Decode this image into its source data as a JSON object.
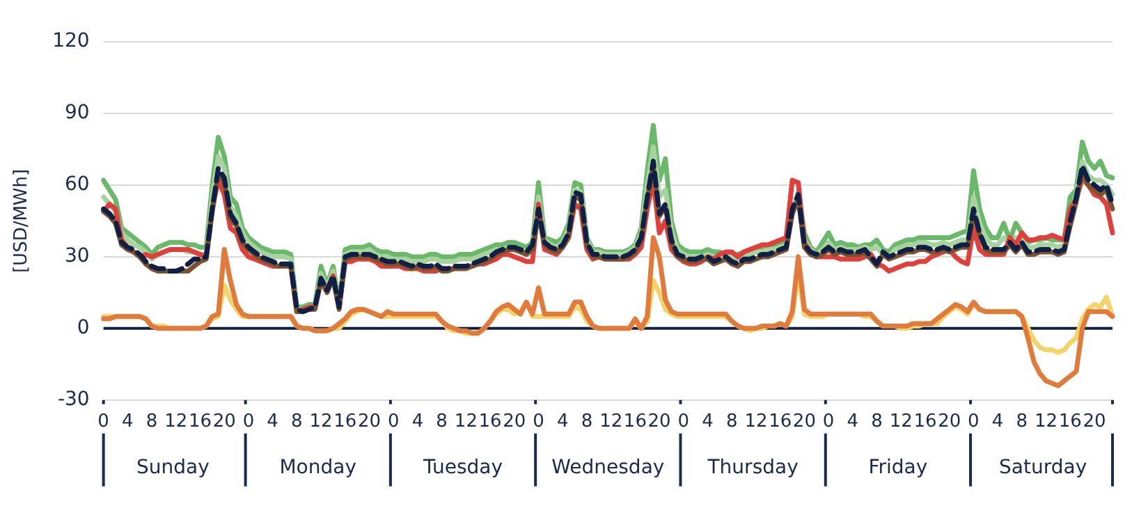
{
  "chart_data": {
    "type": "line",
    "ylabel": "[USD/MWh]",
    "ylim": [
      -30,
      120
    ],
    "yticks": [
      -30,
      0,
      30,
      60,
      90,
      120
    ],
    "grid": "y",
    "legend": false,
    "marker": "none",
    "categories": [
      "0",
      null,
      null,
      null,
      "4",
      null,
      null,
      null,
      "8",
      null,
      null,
      null,
      "12",
      null,
      null,
      null,
      "16",
      null,
      null,
      null,
      "20",
      null,
      null,
      null,
      "0",
      null,
      null,
      null,
      "4",
      null,
      null,
      null,
      "8",
      null,
      null,
      null,
      "12",
      null,
      null,
      null,
      "16",
      null,
      null,
      null,
      "20",
      null,
      null,
      null,
      "0",
      null,
      null,
      null,
      "4",
      null,
      null,
      null,
      "8",
      null,
      null,
      null,
      "12",
      null,
      null,
      null,
      "16",
      null,
      null,
      null,
      "20",
      null,
      null,
      null,
      "0",
      null,
      null,
      null,
      "4",
      null,
      null,
      null,
      "8",
      null,
      null,
      null,
      "12",
      null,
      null,
      null,
      "16",
      null,
      null,
      null,
      "20",
      null,
      null,
      null,
      "0",
      null,
      null,
      null,
      "4",
      null,
      null,
      null,
      "8",
      null,
      null,
      null,
      "12",
      null,
      null,
      null,
      "16",
      null,
      null,
      null,
      "20",
      null,
      null,
      null,
      "0",
      null,
      null,
      null,
      "4",
      null,
      null,
      null,
      "8",
      null,
      null,
      null,
      "12",
      null,
      null,
      null,
      "16",
      null,
      null,
      null,
      "20",
      null,
      null,
      null,
      "0",
      null,
      null,
      null,
      "4",
      null,
      null,
      null,
      "8",
      null,
      null,
      null,
      "12",
      null,
      null,
      null,
      "16",
      null,
      null,
      null,
      "20",
      null,
      null,
      null
    ],
    "annotations": [
      "Sunday",
      "Monday",
      "Tuesday",
      "Wednesday",
      "Thursday",
      "Friday",
      "Saturday"
    ],
    "ref_lines": [
      {
        "axis": "y",
        "value": 0,
        "color": "#0f1f45"
      }
    ],
    "series": [
      {
        "color": "#6ab86a",
        "line_style": "solid",
        "values": [
          62,
          58,
          54,
          42,
          40,
          38,
          36,
          34,
          31,
          34,
          35,
          36,
          36,
          36,
          35,
          35,
          34,
          34,
          60,
          80,
          72,
          55,
          52,
          42,
          38,
          36,
          34,
          33,
          32,
          32,
          32,
          31,
          9,
          9,
          10,
          10,
          26,
          18,
          26,
          10,
          33,
          34,
          34,
          34,
          35,
          33,
          32,
          32,
          31,
          31,
          31,
          30,
          30,
          30,
          31,
          31,
          30,
          30,
          30,
          31,
          31,
          31,
          32,
          33,
          34,
          35,
          35,
          36,
          36,
          35,
          34,
          36,
          61,
          38,
          37,
          36,
          38,
          44,
          61,
          60,
          38,
          33,
          33,
          32,
          32,
          32,
          32,
          33,
          35,
          42,
          66,
          85,
          62,
          71,
          45,
          35,
          33,
          32,
          32,
          32,
          33,
          32,
          32,
          31,
          31,
          31,
          32,
          33,
          34,
          34,
          35,
          35,
          35,
          36,
          48,
          57,
          40,
          34,
          32,
          36,
          40,
          35,
          36,
          35,
          35,
          34,
          35,
          35,
          37,
          33,
          32,
          35,
          36,
          37,
          37,
          38,
          38,
          38,
          38,
          38,
          38,
          39,
          40,
          41,
          66,
          50,
          42,
          38,
          38,
          44,
          37,
          44,
          40,
          36,
          37,
          37,
          38,
          37,
          37,
          37,
          55,
          58,
          78,
          70,
          67,
          70,
          64,
          63
        ]
      },
      {
        "color": "#a9d39e",
        "line_style": "solid",
        "values": [
          55,
          52,
          49,
          40,
          37,
          35,
          34,
          32,
          29,
          31,
          32,
          33,
          33,
          33,
          32,
          32,
          31,
          31,
          55,
          72,
          67,
          51,
          47,
          40,
          36,
          34,
          32,
          31,
          30,
          30,
          30,
          29,
          8,
          8,
          9,
          9,
          23,
          17,
          24,
          9,
          31,
          32,
          32,
          32,
          33,
          31,
          30,
          30,
          29,
          29,
          29,
          28,
          28,
          28,
          29,
          29,
          28,
          28,
          28,
          29,
          29,
          29,
          30,
          31,
          32,
          33,
          33,
          34,
          34,
          33,
          32,
          34,
          55,
          37,
          35,
          34,
          36,
          42,
          58,
          57,
          37,
          32,
          32,
          31,
          31,
          31,
          31,
          32,
          34,
          40,
          60,
          76,
          55,
          58,
          41,
          33,
          31,
          30,
          30,
          30,
          31,
          30,
          30,
          30,
          30,
          29,
          30,
          31,
          32,
          32,
          33,
          33,
          34,
          35,
          48,
          55,
          37,
          33,
          31,
          33,
          36,
          33,
          34,
          33,
          33,
          33,
          34,
          33,
          34,
          31,
          30,
          33,
          34,
          35,
          35,
          36,
          36,
          35,
          35,
          36,
          35,
          36,
          37,
          37,
          55,
          44,
          38,
          35,
          35,
          38,
          36,
          38,
          38,
          34,
          34,
          35,
          35,
          35,
          34,
          35,
          48,
          56,
          70,
          64,
          62,
          62,
          60,
          56
        ]
      },
      {
        "color": "#e0403c",
        "line_style": "solid",
        "values": [
          49,
          52,
          50,
          37,
          34,
          32,
          30,
          31,
          30,
          31,
          32,
          33,
          33,
          33,
          33,
          32,
          31,
          30,
          50,
          62,
          56,
          42,
          40,
          33,
          30,
          29,
          28,
          27,
          26,
          26,
          26,
          26,
          7,
          8,
          9,
          9,
          20,
          16,
          22,
          9,
          28,
          28,
          29,
          29,
          29,
          28,
          26,
          26,
          26,
          26,
          25,
          25,
          25,
          24,
          24,
          24,
          25,
          25,
          25,
          26,
          26,
          26,
          27,
          27,
          28,
          29,
          31,
          31,
          30,
          29,
          28,
          28,
          52,
          33,
          32,
          31,
          34,
          38,
          52,
          50,
          33,
          29,
          30,
          29,
          29,
          29,
          29,
          29,
          31,
          34,
          50,
          62,
          40,
          45,
          33,
          30,
          28,
          27,
          27,
          28,
          30,
          29,
          31,
          32,
          32,
          30,
          32,
          33,
          34,
          35,
          35,
          36,
          37,
          38,
          62,
          61,
          36,
          32,
          30,
          30,
          30,
          30,
          29,
          29,
          29,
          29,
          30,
          31,
          27,
          26,
          24,
          25,
          26,
          27,
          27,
          28,
          28,
          30,
          31,
          32,
          33,
          30,
          28,
          27,
          42,
          33,
          31,
          31,
          31,
          31,
          38,
          35,
          40,
          37,
          37,
          38,
          38,
          39,
          38,
          37,
          50,
          54,
          63,
          60,
          56,
          55,
          52,
          40
        ]
      },
      {
        "color": "#7a5230",
        "line_style": "solid",
        "values": [
          49,
          47,
          44,
          35,
          33,
          32,
          30,
          27,
          25,
          24,
          24,
          24,
          24,
          24,
          24,
          26,
          28,
          29,
          49,
          65,
          61,
          46,
          43,
          36,
          33,
          31,
          29,
          28,
          27,
          26,
          26,
          26,
          7,
          7,
          8,
          8,
          20,
          15,
          21,
          8,
          29,
          30,
          30,
          30,
          30,
          29,
          28,
          27,
          27,
          27,
          26,
          25,
          26,
          25,
          25,
          26,
          24,
          24,
          25,
          25,
          25,
          26,
          27,
          28,
          29,
          31,
          32,
          33,
          33,
          32,
          31,
          33,
          48,
          35,
          33,
          32,
          34,
          39,
          55,
          54,
          35,
          30,
          30,
          29,
          29,
          29,
          29,
          30,
          32,
          37,
          54,
          68,
          47,
          51,
          36,
          30,
          29,
          28,
          28,
          29,
          29,
          27,
          28,
          29,
          27,
          26,
          28,
          28,
          29,
          30,
          30,
          31,
          32,
          33,
          48,
          54,
          34,
          31,
          30,
          31,
          33,
          31,
          32,
          31,
          31,
          31,
          32,
          29,
          26,
          31,
          29,
          30,
          31,
          32,
          32,
          33,
          33,
          32,
          32,
          33,
          32,
          33,
          34,
          34,
          48,
          39,
          33,
          32,
          32,
          32,
          35,
          32,
          35,
          31,
          31,
          32,
          32,
          32,
          31,
          32,
          43,
          53,
          66,
          60,
          58,
          56,
          58,
          50
        ]
      },
      {
        "color": "#0f1f45",
        "line_style": "dashed",
        "values": [
          50,
          48,
          45,
          36,
          34,
          33,
          31,
          28,
          26,
          25,
          25,
          24,
          24,
          25,
          27,
          29,
          29,
          30,
          50,
          67,
          63,
          48,
          44,
          37,
          34,
          32,
          30,
          29,
          28,
          27,
          27,
          27,
          8,
          7,
          8,
          9,
          21,
          16,
          22,
          9,
          30,
          31,
          31,
          31,
          31,
          30,
          29,
          28,
          28,
          28,
          27,
          26,
          27,
          26,
          26,
          27,
          25,
          25,
          26,
          26,
          26,
          27,
          28,
          29,
          30,
          32,
          33,
          34,
          34,
          33,
          32,
          35,
          50,
          36,
          34,
          33,
          35,
          40,
          57,
          56,
          36,
          31,
          31,
          30,
          30,
          30,
          30,
          31,
          33,
          38,
          55,
          70,
          48,
          52,
          37,
          31,
          30,
          29,
          29,
          30,
          30,
          28,
          29,
          30,
          28,
          27,
          29,
          29,
          30,
          31,
          31,
          32,
          33,
          34,
          50,
          56,
          35,
          32,
          31,
          32,
          34,
          32,
          33,
          32,
          32,
          32,
          33,
          30,
          27,
          32,
          30,
          31,
          32,
          33,
          33,
          34,
          34,
          33,
          33,
          34,
          33,
          34,
          35,
          35,
          50,
          40,
          34,
          33,
          33,
          33,
          36,
          33,
          36,
          32,
          32,
          33,
          33,
          33,
          32,
          33,
          45,
          55,
          68,
          62,
          60,
          58,
          60,
          52
        ]
      },
      {
        "color": "#f2d46a",
        "line_style": "solid",
        "values": [
          5,
          5,
          5,
          5,
          5,
          5,
          5,
          4,
          1,
          1,
          1,
          0,
          0,
          0,
          0,
          0,
          0,
          1,
          4,
          5,
          18,
          12,
          8,
          5,
          5,
          5,
          5,
          5,
          5,
          5,
          5,
          5,
          1,
          0,
          0,
          -1,
          -1,
          -1,
          0,
          0,
          3,
          6,
          7,
          8,
          7,
          6,
          5,
          5,
          5,
          5,
          5,
          5,
          5,
          5,
          5,
          5,
          3,
          0,
          -1,
          -1,
          -2,
          -2,
          -2,
          0,
          3,
          6,
          8,
          8,
          6,
          7,
          11,
          5,
          5,
          5,
          5,
          5,
          5,
          5,
          9,
          8,
          3,
          1,
          0,
          0,
          0,
          0,
          0,
          0,
          3,
          0,
          3,
          20,
          15,
          8,
          6,
          5,
          5,
          5,
          5,
          5,
          5,
          5,
          5,
          5,
          3,
          1,
          0,
          -1,
          0,
          0,
          1,
          1,
          2,
          1,
          5,
          24,
          6,
          5,
          5,
          5,
          6,
          6,
          6,
          6,
          6,
          6,
          5,
          5,
          3,
          1,
          1,
          1,
          0,
          0,
          1,
          1,
          2,
          2,
          2,
          5,
          7,
          9,
          8,
          6,
          10,
          8,
          7,
          7,
          7,
          7,
          7,
          7,
          5,
          0,
          -5,
          -8,
          -9,
          -9,
          -10,
          -9,
          -6,
          -4,
          4,
          8,
          10,
          9,
          13,
          5
        ]
      },
      {
        "color": "#e07b3c",
        "line_style": "solid",
        "values": [
          4,
          4,
          5,
          5,
          5,
          5,
          5,
          4,
          1,
          0,
          0,
          0,
          0,
          0,
          0,
          0,
          0,
          1,
          5,
          6,
          33,
          20,
          10,
          6,
          5,
          5,
          5,
          5,
          5,
          5,
          5,
          5,
          1,
          0,
          0,
          -1,
          -1,
          -1,
          0,
          2,
          4,
          7,
          8,
          8,
          7,
          6,
          5,
          7,
          6,
          6,
          6,
          6,
          6,
          6,
          6,
          6,
          3,
          1,
          0,
          -1,
          -1,
          -2,
          -2,
          0,
          3,
          7,
          9,
          10,
          8,
          6,
          11,
          6,
          17,
          6,
          6,
          6,
          6,
          6,
          11,
          11,
          5,
          1,
          0,
          0,
          0,
          0,
          0,
          0,
          4,
          0,
          5,
          38,
          30,
          12,
          7,
          6,
          6,
          6,
          6,
          6,
          6,
          6,
          6,
          6,
          3,
          1,
          0,
          0,
          0,
          1,
          1,
          1,
          2,
          1,
          7,
          30,
          8,
          6,
          6,
          6,
          6,
          6,
          6,
          6,
          6,
          6,
          6,
          6,
          3,
          1,
          1,
          1,
          1,
          1,
          2,
          2,
          2,
          2,
          4,
          6,
          8,
          10,
          9,
          7,
          11,
          8,
          7,
          7,
          7,
          7,
          7,
          7,
          5,
          -4,
          -14,
          -19,
          -22,
          -23,
          -24,
          -22,
          -20,
          -18,
          0,
          7,
          7,
          7,
          7,
          5
        ]
      }
    ]
  }
}
